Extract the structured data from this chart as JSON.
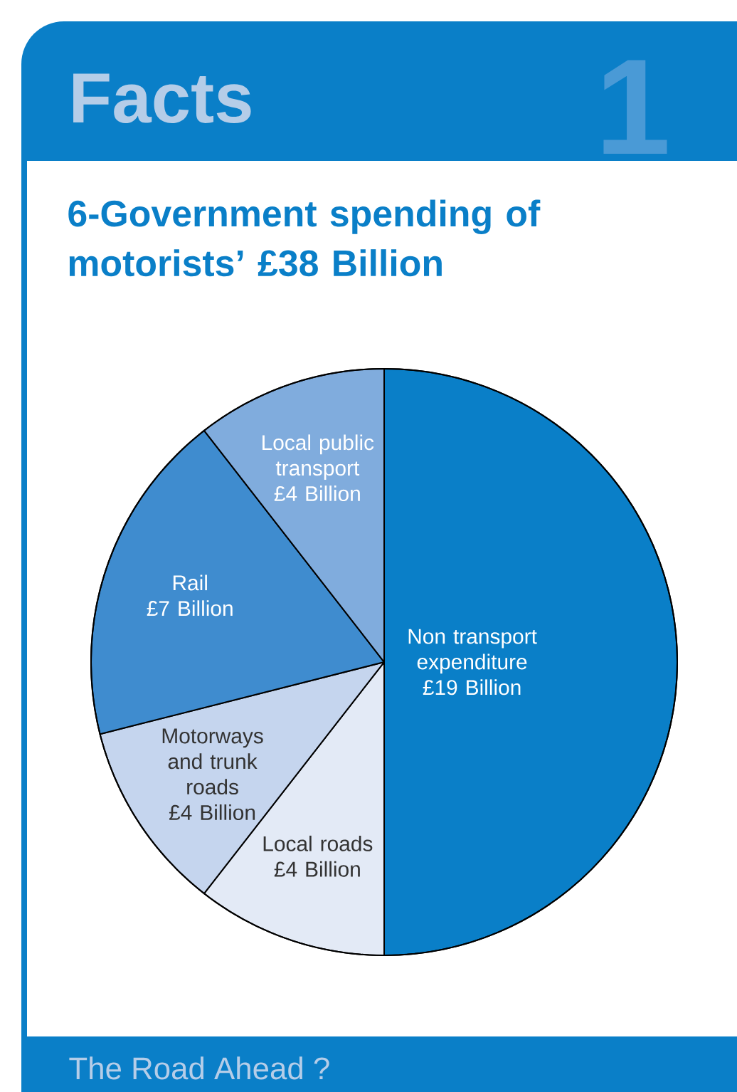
{
  "chart_data": {
    "type": "pie",
    "title": "6-Government spending of motorists’ £38 Billion",
    "categories": [
      "Non transport expenditure",
      "Local roads",
      "Motorways and trunk roads",
      "Rail",
      "Local public transport"
    ],
    "values": [
      19,
      4,
      4,
      7,
      4
    ],
    "colors": [
      "#0a7fc8",
      "#e3eaf6",
      "#c5d5ee",
      "#3f8ccf",
      "#80acdd"
    ],
    "value_labels": [
      "£19 Billion",
      "£4 Billion",
      "£4 Billion",
      "£7 Billion",
      "£4 Billion"
    ],
    "annotations": [
      "Facts",
      "1",
      "The Road Ahead ?"
    ]
  }
}
